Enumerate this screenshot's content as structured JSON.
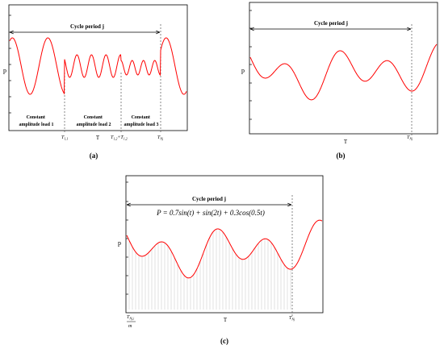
{
  "colors": {
    "curve": "#ff0000",
    "axis": "#000000",
    "fill_lines": "#cfcfcf",
    "dashed": "#555555"
  },
  "panel_a": {
    "cycle_label": "Cycle period j",
    "y_label": "p",
    "x_label": "T",
    "caption": "(a)",
    "segment1": [
      "Constant",
      "amplitude load 1"
    ],
    "segment2": [
      "Constant",
      "amplitude load 2"
    ],
    "segment3": [
      "Constant",
      "amplitude load 3"
    ],
    "tick1_main": "T",
    "tick1_sub": "1,1",
    "tick2_main": "T",
    "tick2_sub": "1,2",
    "tick2_plus": "+T",
    "tick2b_sub": "1,2",
    "tick3_main": "T",
    "tick3_sub": "Nj"
  },
  "panel_b": {
    "cycle_label": "Cycle period j",
    "y_label": "p",
    "x_label": "T",
    "caption": "(b)",
    "tick_main": "T",
    "tick_sub": "Nj"
  },
  "panel_c": {
    "cycle_label": "Cycle period j",
    "formula": "P = 0.7sin(t) + sin(2t) + 0.3cos(0.5t)",
    "y_label": "p",
    "x_label": "T",
    "caption": "(c)",
    "tick_left_main": "T",
    "tick_left_sub": "Nj,i",
    "tick_left_denom": "m",
    "tick_right_main": "T",
    "tick_right_sub": "Nj"
  }
}
